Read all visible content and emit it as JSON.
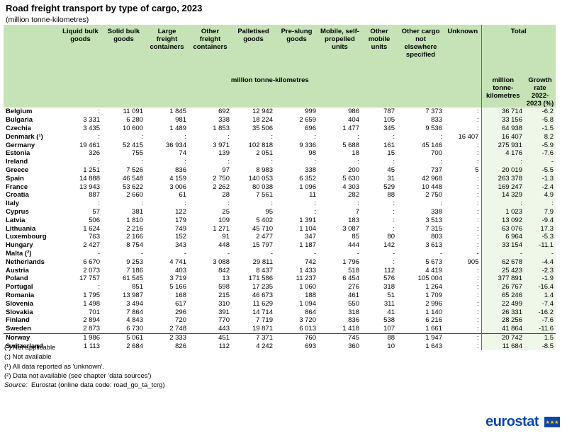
{
  "title": "Road freight transport by type of cargo, 2023",
  "subtitle": "(million tonne-kilometres)",
  "headers": [
    "Liquid bulk goods",
    "Solid bulk goods",
    "Large freight containers",
    "Other freight containers",
    "Palletised goods",
    "Pre-slung goods",
    "Mobile, self-propelled units",
    "Other mobile units",
    "Other cargo not elsewhere specified",
    "Unknown"
  ],
  "total_header": "Total",
  "unit_label": "million tonne-kilometres",
  "total_sub": [
    "million tonne-kilometres",
    "Growth rate 2022-2023 (%)"
  ],
  "rows": [
    {
      "country": "Belgium",
      "v": [
        ":",
        "11 091",
        "1 845",
        "692",
        "12 942",
        "999",
        "986",
        "787",
        "7 373",
        ":"
      ],
      "t": "36 714",
      "g": "-6.2"
    },
    {
      "country": "Bulgaria",
      "v": [
        "3 331",
        "6 280",
        "981",
        "338",
        "18 224",
        "2 659",
        "404",
        "105",
        "833",
        ":"
      ],
      "t": "33 156",
      "g": "-5.8"
    },
    {
      "country": "Czechia",
      "v": [
        "3 435",
        "10 600",
        "1 489",
        "1 853",
        "35 506",
        "696",
        "1 477",
        "345",
        "9 536",
        ":"
      ],
      "t": "64 938",
      "g": "-1.5"
    },
    {
      "country": "Denmark (¹)",
      "v": [
        ":",
        ":",
        ":",
        ":",
        ":",
        ":",
        ":",
        ":",
        ":",
        "16 407"
      ],
      "t": "16 407",
      "g": "8.2"
    },
    {
      "country": "Germany",
      "v": [
        "19 461",
        "52 415",
        "36 934",
        "3 971",
        "102 818",
        "9 336",
        "5 688",
        "161",
        "45 146",
        ":"
      ],
      "t": "275 931",
      "g": "-5.9"
    },
    {
      "country": "Estonia",
      "v": [
        "326",
        "755",
        "74",
        "139",
        "2 051",
        "98",
        "18",
        "15",
        "700",
        ":"
      ],
      "t": "4 176",
      "g": "-7.6"
    },
    {
      "country": "Ireland",
      "v": [
        ":",
        ":",
        ":",
        ":",
        ":",
        ":",
        ":",
        ":",
        ":",
        ":"
      ],
      "t": ":",
      "g": "-"
    },
    {
      "country": "Greece",
      "v": [
        "1 251",
        "7 526",
        "836",
        "97",
        "8 983",
        "338",
        "200",
        "45",
        "737",
        "5"
      ],
      "t": "20 019",
      "g": "-5.5"
    },
    {
      "country": "Spain",
      "v": [
        "14 888",
        "46 548",
        "4 159",
        "2 750",
        "140 053",
        "6 352",
        "5 630",
        "31",
        "42 968",
        ":"
      ],
      "t": "263 378",
      "g": "-1.3"
    },
    {
      "country": "France",
      "v": [
        "13 943",
        "53 622",
        "3 006",
        "2 262",
        "80 038",
        "1 096",
        "4 303",
        "529",
        "10 448",
        ":"
      ],
      "t": "169 247",
      "g": "-2.4"
    },
    {
      "country": "Croatia",
      "v": [
        "887",
        "2 660",
        "61",
        "28",
        "7 561",
        "11",
        "282",
        "88",
        "2 750",
        ":"
      ],
      "t": "14 329",
      "g": "4.9"
    },
    {
      "country": "Italy",
      "v": [
        ":",
        ":",
        ":",
        ":",
        ":",
        ":",
        ":",
        ":",
        ":",
        ":"
      ],
      "t": ":",
      "g": ":"
    },
    {
      "country": "Cyprus",
      "v": [
        "57",
        "381",
        "122",
        "25",
        "95",
        ":",
        "7",
        ":",
        "338",
        ":"
      ],
      "t": "1 023",
      "g": "7.9"
    },
    {
      "country": "Latvia",
      "v": [
        "506",
        "1 810",
        "179",
        "109",
        "5 402",
        "1 391",
        "183",
        ":",
        "3 513",
        ":"
      ],
      "t": "13 092",
      "g": "-9.4"
    },
    {
      "country": "Lithuania",
      "v": [
        "1 624",
        "2 216",
        "749",
        "1 271",
        "45 710",
        "1 104",
        "3 087",
        ":",
        "7 315",
        ":"
      ],
      "t": "63 076",
      "g": "17.3"
    },
    {
      "country": "Luxembourg",
      "v": [
        "763",
        "2 166",
        "152",
        "91",
        "2 477",
        "347",
        "85",
        "80",
        "803",
        ":"
      ],
      "t": "6 964",
      "g": "-5.3"
    },
    {
      "country": "Hungary",
      "v": [
        "2 427",
        "8 754",
        "343",
        "448",
        "15 797",
        "1 187",
        "444",
        "142",
        "3 613",
        ":"
      ],
      "t": "33 154",
      "g": "-11.1"
    },
    {
      "country": "Malta (²)",
      "v": [
        "-",
        "-",
        "-",
        "-",
        "-",
        "-",
        "-",
        "-",
        "-",
        "-"
      ],
      "t": "-",
      "g": "-"
    },
    {
      "country": "Netherlands",
      "v": [
        "6 670",
        "9 253",
        "4 741",
        "3 088",
        "29 811",
        "742",
        "1 796",
        ":",
        "5 673",
        "905"
      ],
      "t": "62 678",
      "g": "-4.4"
    },
    {
      "country": "Austria",
      "v": [
        "2 073",
        "7 186",
        "403",
        "842",
        "8 437",
        "1 433",
        "518",
        "112",
        "4 419",
        ":"
      ],
      "t": "25 423",
      "g": "-2.3"
    },
    {
      "country": "Poland",
      "v": [
        "17 757",
        "61 545",
        "3 719",
        "13",
        "171 586",
        "11 237",
        "6 454",
        "576",
        "105 004",
        ":"
      ],
      "t": "377 891",
      "g": "-1.9"
    },
    {
      "country": "Portugal",
      "v": [
        ":",
        "851",
        "5 166",
        "598",
        "17 235",
        "1 060",
        "276",
        "318",
        "1 264",
        ":"
      ],
      "t": "26 767",
      "g": "-16.4"
    },
    {
      "country": "Romania",
      "v": [
        "1 795",
        "13 987",
        "168",
        "215",
        "46 673",
        "188",
        "461",
        "51",
        "1 709",
        ":"
      ],
      "t": "65 246",
      "g": "1.4"
    },
    {
      "country": "Slovenia",
      "v": [
        "1 498",
        "3 494",
        "617",
        "310",
        "11 629",
        "1 094",
        "550",
        "311",
        "2 996",
        ":"
      ],
      "t": "22 499",
      "g": "-7.4"
    },
    {
      "country": "Slovakia",
      "v": [
        "701",
        "7 864",
        "296",
        "391",
        "14 714",
        "864",
        "318",
        "41",
        "1 140",
        ":"
      ],
      "t": "26 331",
      "g": "-16.2"
    },
    {
      "country": "Finland",
      "v": [
        "2 894",
        "4 843",
        "720",
        "770",
        "7 719",
        "3 720",
        "836",
        "538",
        "6 216",
        ":"
      ],
      "t": "28 256",
      "g": "-7.6"
    },
    {
      "country": "Sweden",
      "v": [
        "2 873",
        "6 730",
        "2 748",
        "443",
        "19 871",
        "6 013",
        "1 418",
        "107",
        "1 661",
        ":"
      ],
      "t": "41 864",
      "g": "-11.6"
    },
    {
      "country": "Norway",
      "v": [
        "1 986",
        "5 061",
        "2 333",
        "451",
        "7 371",
        "760",
        "745",
        "88",
        "1 947",
        ":"
      ],
      "t": "20 742",
      "g": "1.5"
    },
    {
      "country": "Switzerland",
      "v": [
        "1 113",
        "2 684",
        "826",
        "112",
        "4 242",
        "693",
        "360",
        "10",
        "1 643",
        ":"
      ],
      "t": "11 684",
      "g": "-8.5"
    }
  ],
  "notes": [
    "(-) Not applicable",
    "(:) Not available",
    "(¹) All data reported as 'unknown'.",
    "(²) Data not available (see chapter 'data sources')"
  ],
  "source": {
    "label": "Source:",
    "text": "Eurostat (online data code: road_go_ta_tcrg)"
  },
  "brand": "eurostat",
  "colors": {
    "header_bg": "#c6e3b7",
    "total_bg": "#eef7e8",
    "brand": "#0e47a6"
  }
}
